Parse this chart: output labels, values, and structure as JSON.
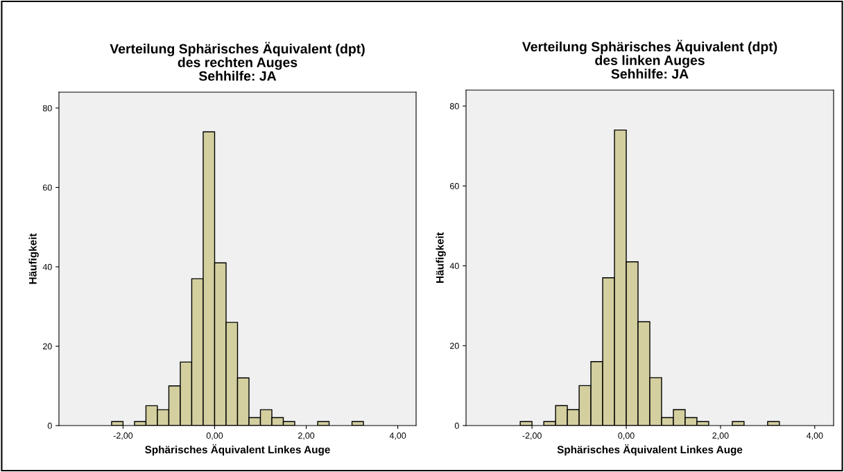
{
  "chart_data": [
    {
      "type": "histogram",
      "title": "Verteilung Sphärisches Äquivalent (dpt)\ndes rechten Auges\nSehhilfe: JA",
      "xlabel": "Sphärisches Äquivalent Linkes Auge",
      "ylabel": "Häufigkeit",
      "bins": [
        -2.25,
        -2.0,
        -1.75,
        -1.5,
        -1.25,
        -1.0,
        -0.75,
        -0.5,
        -0.25,
        0.0,
        0.25,
        0.5,
        0.75,
        1.0,
        1.25,
        1.5,
        1.75,
        2.0,
        2.25,
        2.5,
        2.75,
        3.0,
        3.25
      ],
      "values": [
        1,
        0,
        1,
        5,
        4,
        10,
        16,
        37,
        74,
        41,
        26,
        12,
        2,
        4,
        2,
        1,
        0,
        0,
        1,
        0,
        0,
        1
      ],
      "color": "#d3cf9f",
      "xlim": [
        -3.4,
        4.4
      ],
      "xticks": [
        {
          "value": -2,
          "label": "-2,00"
        },
        {
          "value": 0,
          "label": "0,00"
        },
        {
          "value": 2,
          "label": "2,00"
        },
        {
          "value": 4,
          "label": "4,00"
        }
      ],
      "ylim": [
        0,
        84
      ],
      "yticks": [
        0,
        20,
        40,
        60,
        80
      ],
      "grid": false
    },
    {
      "type": "histogram",
      "title": "Verteilung Sphärisches Äquivalent (dpt)\ndes linken Auges\nSehhilfe: JA",
      "xlabel": "Sphärisches Äquivalent Linkes Auge",
      "ylabel": "Häufigkeit",
      "bins": [
        -2.25,
        -2.0,
        -1.75,
        -1.5,
        -1.25,
        -1.0,
        -0.75,
        -0.5,
        -0.25,
        0.0,
        0.25,
        0.5,
        0.75,
        1.0,
        1.25,
        1.5,
        1.75,
        2.0,
        2.25,
        2.5,
        2.75,
        3.0,
        3.25
      ],
      "values": [
        1,
        0,
        1,
        5,
        4,
        10,
        16,
        37,
        74,
        41,
        26,
        12,
        2,
        4,
        2,
        1,
        0,
        0,
        1,
        0,
        0,
        1
      ],
      "color": "#d3cf9f",
      "xlim": [
        -3.4,
        4.4
      ],
      "xticks": [
        {
          "value": -2,
          "label": "-2,00"
        },
        {
          "value": 0,
          "label": "0,00"
        },
        {
          "value": 2,
          "label": "2,00"
        },
        {
          "value": 4,
          "label": "4,00"
        }
      ],
      "ylim": [
        0,
        84
      ],
      "yticks": [
        0,
        20,
        40,
        60,
        80
      ],
      "grid": false
    }
  ]
}
